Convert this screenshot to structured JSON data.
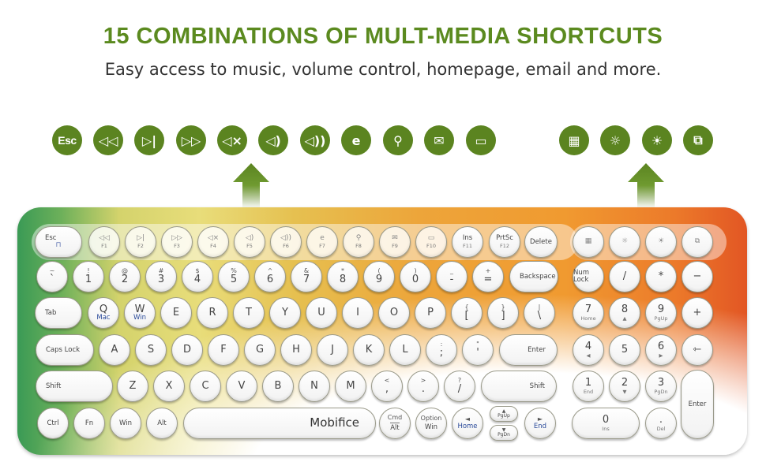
{
  "header": {
    "title": "15 COMBINATIONS OF MULT-MEDIA SHORTCUTS",
    "subtitle": "Easy access to music, volume control, homepage, email and more."
  },
  "colors": {
    "accent": "#5b8420"
  },
  "shortcuts": [
    {
      "label": "Esc"
    },
    {
      "icon": "rewind-icon"
    },
    {
      "icon": "play-pause-icon"
    },
    {
      "icon": "fast-forward-icon"
    },
    {
      "icon": "mute-icon"
    },
    {
      "icon": "volume-down-icon"
    },
    {
      "icon": "volume-up-icon"
    },
    {
      "icon": "browser-icon"
    },
    {
      "icon": "search-icon"
    },
    {
      "icon": "mail-icon"
    },
    {
      "icon": "folder-icon"
    },
    {
      "icon": "calculator-icon"
    },
    {
      "icon": "brightness-down-icon"
    },
    {
      "icon": "brightness-up-icon"
    },
    {
      "icon": "switch-device-icon"
    }
  ],
  "keyboard": {
    "rows": [
      [
        {
          "main": "Esc",
          "icon": "lock-icon"
        },
        {
          "icon": "rewind-icon",
          "sub": "F1"
        },
        {
          "icon": "play-pause-icon",
          "sub": "F2"
        },
        {
          "icon": "fast-forward-icon",
          "sub": "F3"
        },
        {
          "icon": "mute-icon",
          "sub": "F4"
        },
        {
          "icon": "volume-down-icon",
          "sub": "F5"
        },
        {
          "icon": "volume-up-icon",
          "sub": "F6"
        },
        {
          "icon": "browser-icon",
          "sub": "F7"
        },
        {
          "icon": "search-icon",
          "sub": "F8"
        },
        {
          "icon": "mail-icon",
          "sub": "F9"
        },
        {
          "icon": "folder-icon",
          "sub": "F10"
        },
        {
          "main": "Ins",
          "sub": "F11"
        },
        {
          "main": "PrtSc",
          "sub": "F12"
        },
        {
          "main": "Delete"
        },
        {
          "icon": "calculator-icon"
        },
        {
          "icon": "brightness-down-icon"
        },
        {
          "icon": "brightness-up-icon"
        },
        {
          "icon": "switch-device-icon"
        }
      ],
      [
        {
          "top": "~",
          "main": "`"
        },
        {
          "top": "!",
          "main": "1"
        },
        {
          "top": "@",
          "main": "2"
        },
        {
          "top": "#",
          "main": "3"
        },
        {
          "top": "$",
          "main": "4"
        },
        {
          "top": "%",
          "main": "5"
        },
        {
          "top": "^",
          "main": "6"
        },
        {
          "top": "&",
          "main": "7"
        },
        {
          "top": "*",
          "main": "8"
        },
        {
          "top": "(",
          "main": "9"
        },
        {
          "top": ")",
          "main": "0"
        },
        {
          "top": "_",
          "main": "-"
        },
        {
          "top": "+",
          "main": "="
        },
        {
          "main": "Backspace"
        },
        {
          "main": "Num Lock"
        },
        {
          "main": "/"
        },
        {
          "main": "*"
        },
        {
          "main": "−"
        }
      ],
      [
        {
          "main": "Tab"
        },
        {
          "main": "Q",
          "sub": "Mac"
        },
        {
          "main": "W",
          "sub": "Win"
        },
        {
          "main": "E"
        },
        {
          "main": "R"
        },
        {
          "main": "T"
        },
        {
          "main": "Y"
        },
        {
          "main": "U"
        },
        {
          "main": "I"
        },
        {
          "main": "O"
        },
        {
          "main": "P"
        },
        {
          "top": "{",
          "main": "["
        },
        {
          "top": "}",
          "main": "]"
        },
        {
          "top": "|",
          "main": "\\"
        },
        {
          "main": "7",
          "sub": "Home"
        },
        {
          "main": "8",
          "sub": "▲"
        },
        {
          "main": "9",
          "sub": "PgUp"
        },
        {
          "main": "+"
        }
      ],
      [
        {
          "main": "Caps Lock"
        },
        {
          "main": "A"
        },
        {
          "main": "S"
        },
        {
          "main": "D"
        },
        {
          "main": "F"
        },
        {
          "main": "G"
        },
        {
          "main": "H"
        },
        {
          "main": "J"
        },
        {
          "main": "K"
        },
        {
          "main": "L"
        },
        {
          "top": ":",
          "main": ";"
        },
        {
          "top": "\"",
          "main": "'"
        },
        {
          "main": "Enter"
        },
        {
          "main": "4",
          "sub": "◀"
        },
        {
          "main": "5"
        },
        {
          "main": "6",
          "sub": "▶"
        },
        {
          "main": "⇽"
        }
      ],
      [
        {
          "main": "Shift"
        },
        {
          "main": "Z"
        },
        {
          "main": "X"
        },
        {
          "main": "C"
        },
        {
          "main": "V"
        },
        {
          "main": "B"
        },
        {
          "main": "N"
        },
        {
          "main": "M"
        },
        {
          "top": "<",
          "main": ","
        },
        {
          "top": ">",
          "main": "."
        },
        {
          "top": "?",
          "main": "/"
        },
        {
          "main": "Shift"
        },
        {
          "main": "1",
          "sub": "End"
        },
        {
          "main": "2",
          "sub": "▼"
        },
        {
          "main": "3",
          "sub": "PgDn"
        },
        {
          "main": "Enter"
        }
      ],
      [
        {
          "main": "Ctrl"
        },
        {
          "main": "Fn"
        },
        {
          "main": "Win"
        },
        {
          "main": "Alt"
        },
        {
          "main": "Mobifice"
        },
        {
          "top": "Cmd",
          "main": "Alt"
        },
        {
          "top": "Option",
          "main": "Win"
        },
        {
          "top": "◄",
          "main": "Home"
        },
        {
          "top": "▲",
          "main": "PgUp"
        },
        {
          "top": "▼",
          "main": "PgDn"
        },
        {
          "top": "►",
          "main": "End"
        },
        {
          "main": "0",
          "sub": "Ins"
        },
        {
          "main": ".",
          "sub": "Del"
        }
      ]
    ]
  }
}
